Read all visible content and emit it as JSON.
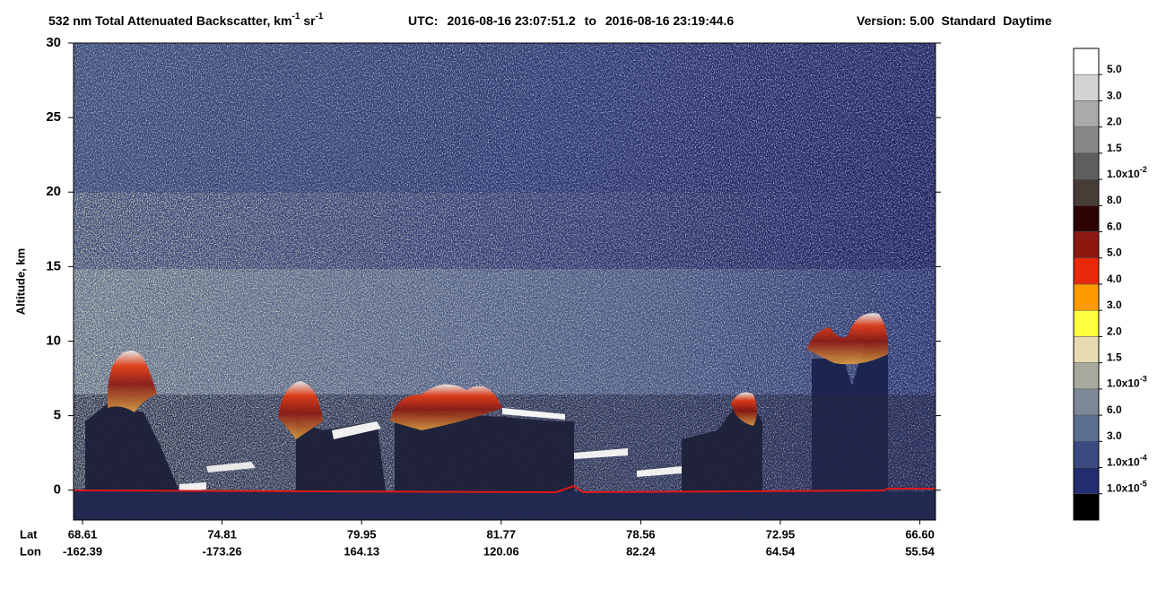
{
  "chart_data": {
    "type": "curtain",
    "title": [
      "532 nm Total Attenuated Backscatter, km",
      "-1",
      " sr",
      "-1"
    ],
    "time_range": {
      "label": "UTC:",
      "start": "2016-08-16 23:07:51.2",
      "to": "to",
      "end": "2016-08-16 23:19:44.6"
    },
    "version": {
      "label": "Version:",
      "value": "5.00"
    },
    "product": "Standard",
    "lighting": "Daytime",
    "ylabel": "Altitude, km",
    "ylim": [
      -2,
      30
    ],
    "yticks": [
      0,
      5,
      10,
      15,
      20,
      25,
      30
    ],
    "x_ticks": {
      "lat_label": "Lat",
      "lon_label": "Lon",
      "lat": [
        "68.61",
        "74.81",
        "79.95",
        "81.77",
        "78.56",
        "72.95",
        "66.60"
      ],
      "lon": [
        "-162.39",
        "-173.26",
        "164.13",
        "120.06",
        "82.24",
        "64.54",
        "55.54"
      ]
    },
    "colorbar": {
      "colors": [
        "#ffffff",
        "#d4d4d4",
        "#aaaaaa",
        "#888888",
        "#5e5e5e",
        "#473c38",
        "#2e0303",
        "#8c1810",
        "#e82a0a",
        "#ff9a00",
        "#ffff40",
        "#e8dab0",
        "#a8aaa0",
        "#7a8898",
        "#5a6e90",
        "#3a4a80",
        "#232e70",
        "#000000"
      ],
      "labels": [
        "5.0",
        "3.0",
        "2.0",
        "1.5",
        {
          "text": "1.0x10",
          "sup": "-2"
        },
        "8.0",
        "6.0",
        "5.0",
        "4.0",
        "3.0",
        "2.0",
        "1.5",
        {
          "text": "1.0x10",
          "sup": "-3"
        },
        "6.0",
        "3.0",
        {
          "text": "1.0x10",
          "sup": "-4"
        },
        {
          "text": "1.0x10",
          "sup": "-5"
        }
      ]
    }
  }
}
